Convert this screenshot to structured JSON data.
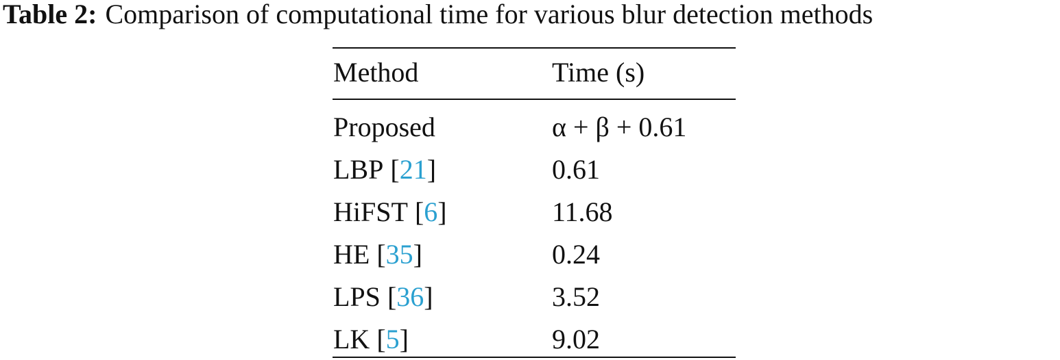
{
  "caption": {
    "label": "Table 2:",
    "text": "Comparison of computational time for various blur detection methods"
  },
  "table": {
    "header": [
      "Method",
      "Time (s)"
    ],
    "rows": [
      {
        "method": "Proposed",
        "time": "α + β + 0.61"
      },
      {
        "method": "LBP",
        "citation": [
          "[",
          "21",
          "]"
        ],
        "time": "0.61"
      },
      {
        "method": "HiFST",
        "citation": [
          "[",
          "6",
          "]"
        ],
        "time": "11.68"
      },
      {
        "method": "HE",
        "citation": [
          "[",
          "35",
          "]"
        ],
        "time": "0.24"
      },
      {
        "method": "LPS",
        "citation": [
          "[",
          "36",
          "]"
        ],
        "time": "3.52"
      },
      {
        "method": "LK",
        "citation": [
          "[",
          "5",
          "]"
        ],
        "time": "9.02"
      }
    ]
  }
}
